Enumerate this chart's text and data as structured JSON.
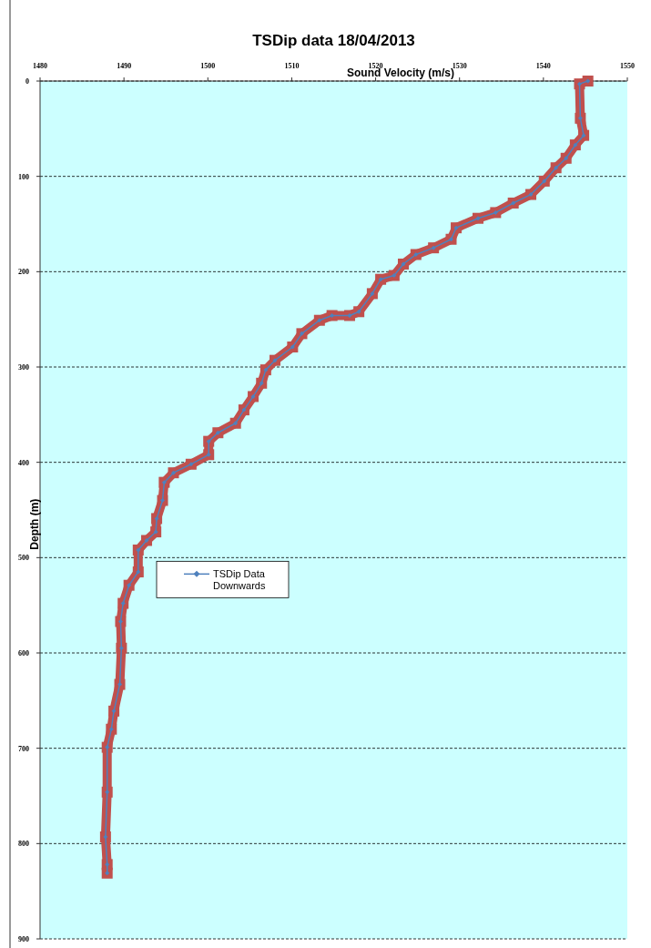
{
  "chart_data": {
    "type": "line",
    "title": "TSDip data  18/04/2013",
    "xlabel": "Sound Velocity (m/s)",
    "ylabel": "Depth (m)",
    "xlim": [
      1480,
      1550
    ],
    "xticks": [
      1480,
      1490,
      1500,
      1510,
      1520,
      1530,
      1540,
      1550
    ],
    "ylim": [
      900,
      0
    ],
    "yticks": [
      0,
      100,
      200,
      300,
      400,
      500,
      600,
      700,
      800,
      900
    ],
    "grid": "y",
    "legend": "left",
    "series": [
      {
        "color": "#c0504d",
        "marker": "square",
        "x": [
          1545.3,
          1544.3,
          1544.4,
          1544.8,
          1543.8,
          1542.7,
          1541.5,
          1540.1,
          1538.5,
          1536.4,
          1534.3,
          1532.2,
          1529.6,
          1529,
          1526.9,
          1524.8,
          1523.3,
          1522.2,
          1520.6,
          1519.6,
          1518,
          1516.9,
          1514.8,
          1513.3,
          1511.2,
          1510.1,
          1508,
          1506.9,
          1506.4,
          1505.4,
          1504.3,
          1503.3,
          1501.2,
          1500.1,
          1500.1,
          1498,
          1495.9,
          1494.8,
          1494.6,
          1493.9,
          1493.8,
          1492.7,
          1491.7,
          1491.7,
          1490.6,
          1489.9,
          1489.6,
          1489.7,
          1489.5,
          1488.8,
          1488.5,
          1488,
          1488,
          1487.8,
          1488,
          1488
        ],
        "values": [
          0,
          3,
          39,
          57,
          67,
          81,
          91,
          105,
          119,
          128,
          138,
          144,
          154,
          166,
          175,
          182,
          192,
          204,
          208,
          223,
          242,
          246,
          246,
          251,
          265,
          279,
          293,
          303,
          317,
          331,
          345,
          359,
          369,
          378,
          392,
          402,
          411,
          421,
          440,
          459,
          473,
          482,
          492,
          515,
          529,
          548,
          567,
          595,
          633,
          661,
          680,
          699,
          746,
          793,
          822,
          831
        ]
      },
      {
        "name": "TSDip Data Downwards",
        "color": "#4f81bd",
        "marker": "diamond",
        "x": [
          1545.3,
          1544.3,
          1544.4,
          1544.8,
          1543.8,
          1542.7,
          1541.5,
          1540.1,
          1538.5,
          1536.4,
          1534.3,
          1532.2,
          1529.6,
          1529,
          1526.9,
          1524.8,
          1523.3,
          1522.2,
          1520.6,
          1519.6,
          1518,
          1516.9,
          1514.8,
          1513.3,
          1511.2,
          1510.1,
          1508,
          1506.9,
          1506.4,
          1505.4,
          1504.3,
          1503.3,
          1501.2,
          1500.1,
          1500.1,
          1498,
          1495.9,
          1494.8,
          1494.6,
          1493.9,
          1493.8,
          1492.7,
          1491.7,
          1491.7,
          1490.6,
          1489.9,
          1489.6,
          1489.7,
          1489.5,
          1488.8,
          1488.5,
          1488,
          1488,
          1487.8,
          1488,
          1488
        ],
        "values": [
          0,
          3,
          39,
          57,
          67,
          81,
          91,
          105,
          119,
          128,
          138,
          144,
          154,
          166,
          175,
          182,
          192,
          204,
          208,
          223,
          242,
          246,
          246,
          251,
          265,
          279,
          293,
          303,
          317,
          331,
          345,
          359,
          369,
          378,
          392,
          402,
          411,
          421,
          440,
          459,
          473,
          482,
          492,
          515,
          529,
          548,
          567,
          595,
          633,
          661,
          680,
          699,
          746,
          793,
          822,
          831
        ]
      }
    ]
  }
}
